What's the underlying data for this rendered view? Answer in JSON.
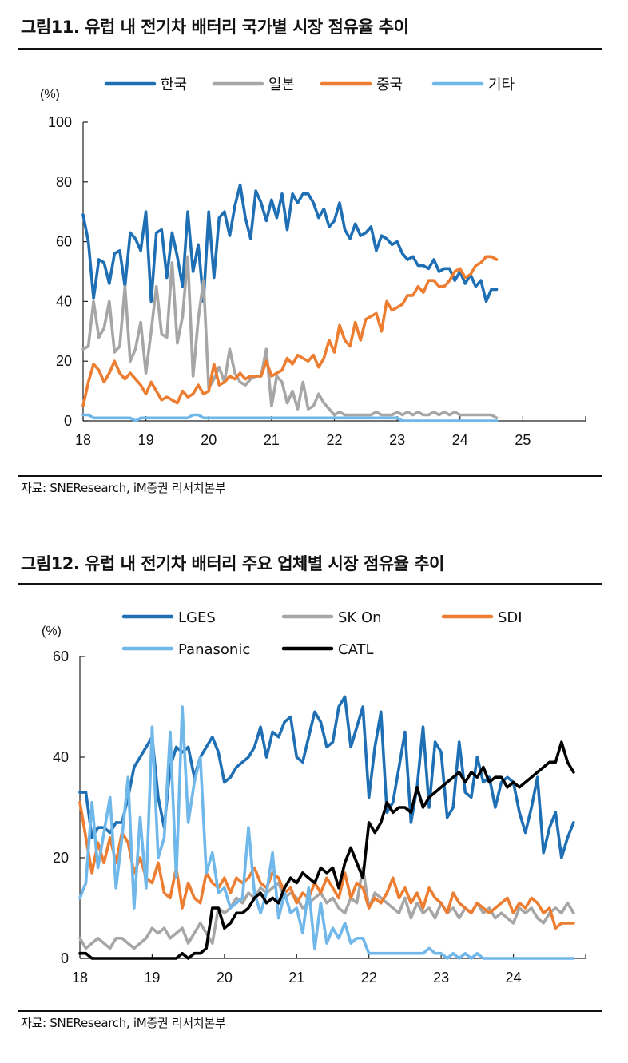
{
  "figure1": {
    "title": "그림11. 유럽 내 전기차 배터리 국가별 시장 점유율 추이",
    "source": "자료: SNEResearch, iM증권 리서치본부"
  },
  "figure2": {
    "title": "그림12. 유럽 내 전기차 배터리 주요 업체별 시장 점유율 추이",
    "source": "자료: SNEResearch, iM증권 리서치본부"
  },
  "chart_data": [
    {
      "type": "line",
      "title": "그림11. 유럽 내 전기차 배터리 국가별 시장 점유율 추이",
      "ylabel": "(%)",
      "xlabel": "",
      "ylim": [
        0,
        100
      ],
      "yticks": [
        0,
        20,
        40,
        60,
        80,
        100
      ],
      "xlim": [
        18,
        26
      ],
      "xticks": [
        "18",
        "19",
        "20",
        "21",
        "22",
        "23",
        "24",
        "25"
      ],
      "x_start": 18.0,
      "x_step": 0.08333,
      "legend": "top",
      "grid": false,
      "series": [
        {
          "name": "한국",
          "color": "#1F6FB5",
          "values": [
            69,
            60,
            41,
            54,
            53,
            46,
            56,
            57,
            45,
            63,
            61,
            57,
            70,
            40,
            63,
            64,
            48,
            63,
            55,
            45,
            70,
            50,
            59,
            40,
            70,
            48,
            68,
            70,
            62,
            72,
            79,
            68,
            61,
            77,
            73,
            67,
            74,
            68,
            76,
            64,
            76,
            73,
            76,
            76,
            73,
            68,
            71,
            65,
            67,
            73,
            64,
            61,
            66,
            62,
            63,
            65,
            57,
            62,
            61,
            59,
            60,
            56,
            54,
            55,
            52,
            52,
            51,
            54,
            50,
            51,
            51,
            47,
            50,
            46,
            49,
            45,
            47,
            40,
            44,
            44
          ]
        },
        {
          "name": "일본",
          "color": "#A6A6A6",
          "values": [
            24,
            25,
            40,
            28,
            31,
            40,
            23,
            25,
            45,
            20,
            24,
            33,
            16,
            30,
            45,
            29,
            28,
            53,
            26,
            35,
            55,
            15,
            34,
            47,
            11,
            14,
            18,
            13,
            24,
            16,
            13,
            12,
            14,
            15,
            15,
            24,
            5,
            15,
            13,
            6,
            10,
            4,
            13,
            4,
            5,
            9,
            6,
            4,
            2,
            3,
            2,
            2,
            2,
            2,
            2,
            2,
            3,
            2,
            2,
            2,
            3,
            2,
            3,
            2,
            3,
            2,
            2,
            3,
            2,
            3,
            2,
            3,
            2,
            2,
            2,
            2,
            2,
            2,
            2,
            1
          ]
        },
        {
          "name": "중국",
          "color": "#ED7D31",
          "values": [
            5,
            13,
            19,
            17,
            13,
            16,
            20,
            16,
            14,
            16,
            14,
            12,
            9,
            13,
            10,
            7,
            8,
            7,
            6,
            10,
            8,
            9,
            12,
            9,
            10,
            19,
            12,
            13,
            15,
            14,
            16,
            14,
            15,
            15,
            15,
            20,
            15,
            16,
            17,
            21,
            19,
            22,
            21,
            20,
            22,
            18,
            21,
            27,
            23,
            32,
            27,
            25,
            33,
            27,
            34,
            35,
            36,
            30,
            40,
            37,
            38,
            39,
            42,
            42,
            45,
            43,
            47,
            47,
            45,
            45,
            47,
            50,
            51,
            48,
            49,
            52,
            53,
            55,
            55,
            54
          ]
        },
        {
          "name": "기타",
          "color": "#70B7EA",
          "values": [
            2,
            2,
            1,
            1,
            1,
            1,
            1,
            1,
            1,
            1,
            0,
            1,
            1,
            1,
            1,
            1,
            1,
            1,
            1,
            1,
            1,
            2,
            2,
            1,
            1,
            1,
            1,
            1,
            1,
            1,
            1,
            1,
            1,
            1,
            1,
            1,
            1,
            1,
            1,
            1,
            1,
            1,
            1,
            1,
            1,
            1,
            1,
            1,
            1,
            1,
            1,
            1,
            1,
            1,
            1,
            1,
            1,
            1,
            1,
            1,
            1,
            0,
            0,
            0,
            0,
            0,
            0,
            0,
            0,
            0,
            0,
            0,
            0,
            0,
            0,
            0,
            0,
            0,
            0,
            0
          ]
        }
      ]
    },
    {
      "type": "line",
      "title": "그림12. 유럽 내 전기차 배터리 주요 업체별 시장 점유율 추이",
      "ylabel": "(%)",
      "xlabel": "",
      "ylim": [
        0,
        60
      ],
      "yticks": [
        0,
        20,
        40,
        60
      ],
      "xlim": [
        18,
        25
      ],
      "xticks": [
        "18",
        "19",
        "20",
        "21",
        "22",
        "23",
        "24"
      ],
      "x_start": 18.0,
      "x_step": 0.08333,
      "legend": "top",
      "grid": false,
      "series": [
        {
          "name": "LGES",
          "color": "#1F6FB5",
          "values": [
            33,
            33,
            24,
            26,
            26,
            25,
            27,
            27,
            32,
            38,
            40,
            42,
            44,
            32,
            26,
            38,
            42,
            41,
            42,
            36,
            40,
            42,
            44,
            41,
            35,
            36,
            38,
            39,
            40,
            42,
            46,
            40,
            45,
            44,
            47,
            48,
            40,
            39,
            44,
            49,
            47,
            42,
            43,
            50,
            52,
            42,
            46,
            50,
            32,
            42,
            49,
            29,
            31,
            38,
            45,
            27,
            34,
            46,
            30,
            43,
            41,
            28,
            30,
            43,
            33,
            32,
            40,
            35,
            36,
            30,
            35,
            36,
            35,
            29,
            25,
            30,
            36,
            21,
            26,
            29,
            20,
            24,
            27
          ]
        },
        {
          "name": "SK On",
          "color": "#A6A6A6",
          "values": [
            4,
            2,
            3,
            4,
            3,
            2,
            4,
            4,
            3,
            2,
            3,
            4,
            6,
            5,
            6,
            4,
            5,
            6,
            3,
            5,
            7,
            5,
            3,
            10,
            9,
            10,
            12,
            11,
            13,
            12,
            14,
            13,
            14,
            15,
            12,
            13,
            12,
            10,
            11,
            12,
            13,
            11,
            12,
            10,
            9,
            12,
            11,
            18,
            10,
            13,
            12,
            11,
            10,
            9,
            12,
            8,
            11,
            9,
            10,
            8,
            11,
            9,
            10,
            8,
            10,
            9,
            11,
            9,
            10,
            8,
            9,
            8,
            7,
            10,
            9,
            10,
            8,
            7,
            9,
            10,
            9,
            11,
            9
          ]
        },
        {
          "name": "SDI",
          "color": "#ED7D31",
          "values": [
            31,
            24,
            17,
            23,
            19,
            24,
            19,
            25,
            23,
            17,
            20,
            16,
            15,
            19,
            13,
            12,
            18,
            10,
            15,
            12,
            11,
            17,
            15,
            14,
            16,
            13,
            16,
            15,
            16,
            18,
            15,
            14,
            17,
            16,
            13,
            14,
            11,
            13,
            12,
            15,
            13,
            16,
            14,
            12,
            17,
            12,
            15,
            14,
            10,
            12,
            11,
            13,
            16,
            12,
            14,
            11,
            13,
            10,
            14,
            12,
            11,
            9,
            13,
            11,
            10,
            9,
            11,
            10,
            9,
            10,
            11,
            12,
            9,
            11,
            10,
            12,
            11,
            9,
            10,
            6,
            7,
            7,
            7
          ]
        },
        {
          "name": "Panasonic",
          "color": "#70B7EA",
          "values": [
            12,
            15,
            31,
            18,
            25,
            32,
            14,
            24,
            36,
            10,
            28,
            14,
            46,
            20,
            24,
            45,
            16,
            50,
            27,
            35,
            40,
            17,
            21,
            13,
            14,
            10,
            11,
            12,
            26,
            13,
            9,
            13,
            21,
            8,
            13,
            9,
            10,
            5,
            14,
            2,
            11,
            3,
            6,
            4,
            7,
            3,
            4,
            4,
            1,
            1,
            1,
            1,
            1,
            1,
            1,
            1,
            1,
            1,
            2,
            1,
            1,
            0,
            1,
            0,
            1,
            0,
            1,
            0,
            0,
            0,
            0,
            0,
            0,
            0,
            0,
            0,
            0,
            0,
            0,
            0,
            0,
            0,
            0
          ]
        },
        {
          "name": "CATL",
          "color": "#000000",
          "values": [
            1,
            1,
            0,
            0,
            0,
            0,
            0,
            0,
            0,
            0,
            0,
            0,
            0,
            0,
            0,
            0,
            0,
            1,
            0,
            1,
            1,
            2,
            10,
            10,
            6,
            7,
            9,
            9,
            10,
            12,
            13,
            11,
            12,
            11,
            14,
            16,
            15,
            17,
            16,
            15,
            18,
            17,
            18,
            14,
            19,
            22,
            19,
            16,
            27,
            25,
            27,
            31,
            29,
            30,
            30,
            29,
            34,
            30,
            32,
            33,
            34,
            35,
            36,
            37,
            35,
            37,
            36,
            38,
            35,
            36,
            36,
            34,
            35,
            34,
            35,
            36,
            37,
            38,
            39,
            39,
            43,
            39,
            37
          ]
        }
      ]
    }
  ]
}
